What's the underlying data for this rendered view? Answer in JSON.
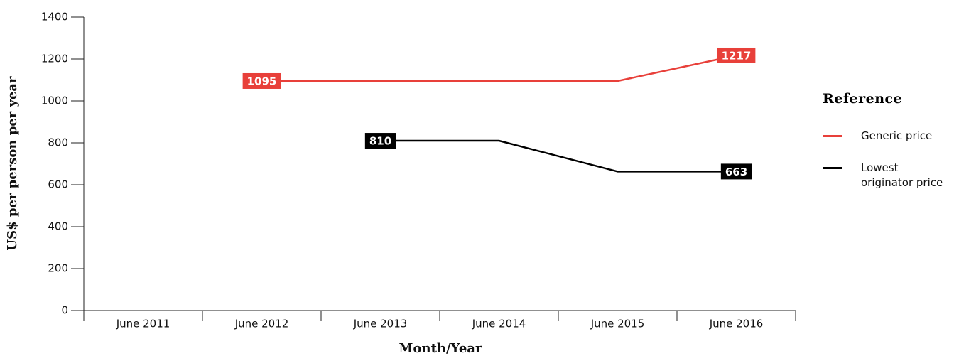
{
  "chart_data": {
    "type": "line",
    "x_label": "Month/Year",
    "y_label": "US$ per person per year",
    "legend_title": "Reference",
    "categories": [
      "June 2011",
      "June 2012",
      "June 2013",
      "June 2014",
      "June 2015",
      "June 2016"
    ],
    "series": [
      {
        "name": "Generic price",
        "color": "#e8403a",
        "values": [
          null,
          1095,
          1095,
          1095,
          1095,
          1217
        ],
        "value_labels": [
          null,
          "1095",
          null,
          null,
          null,
          "1217"
        ]
      },
      {
        "name": "Lowest originator price",
        "color": "#000000",
        "values": [
          null,
          null,
          810,
          810,
          663,
          663
        ],
        "value_labels": [
          null,
          null,
          "810",
          null,
          null,
          "663"
        ]
      }
    ],
    "ylim": [
      0,
      1400
    ],
    "yticks": [
      0,
      200,
      400,
      600,
      800,
      1000,
      1200,
      1400
    ],
    "grid": false,
    "legend": "right"
  }
}
